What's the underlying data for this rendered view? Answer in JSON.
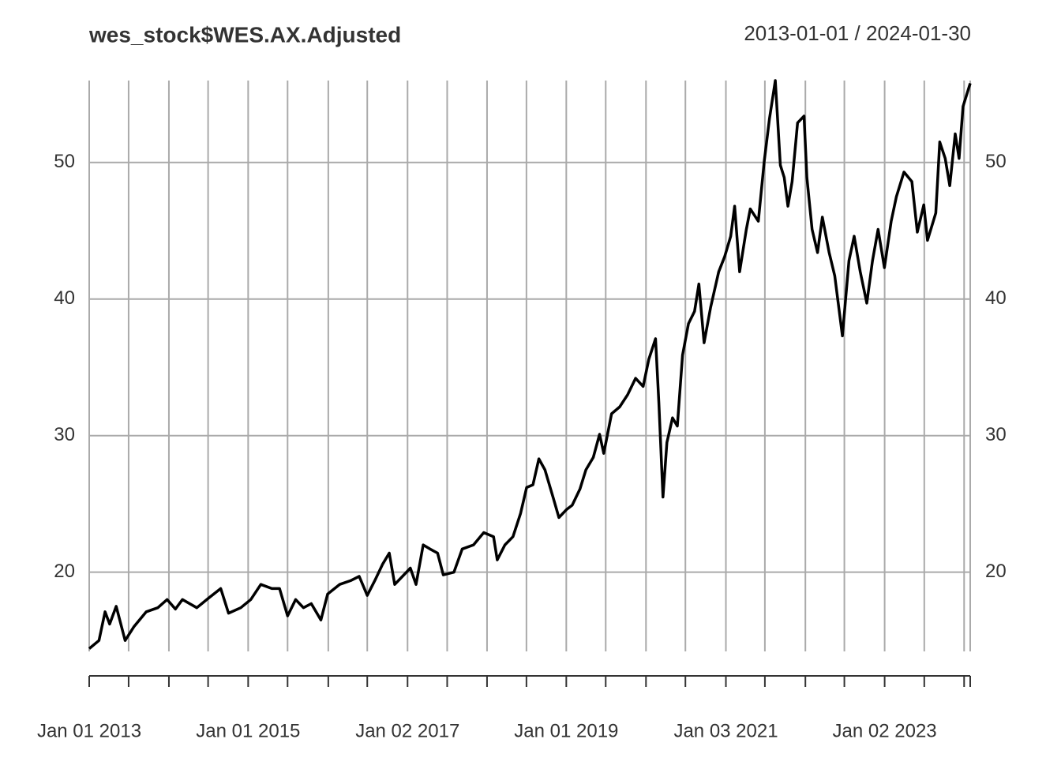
{
  "chart_data": {
    "type": "line",
    "title": "wes_stock$WES.AX.Adjusted",
    "date_range": "2013-01-01 / 2024-01-30",
    "x": [
      "2013-01-01",
      "2013-02-15",
      "2013-03-15",
      "2013-04-05",
      "2013-05-05",
      "2013-06-15",
      "2013-07-25",
      "2013-09-20",
      "2013-11-12",
      "2013-12-25",
      "2014-02-01",
      "2014-03-05",
      "2014-05-10",
      "2014-07-03",
      "2014-08-28",
      "2014-10-03",
      "2014-11-28",
      "2015-01-13",
      "2015-02-28",
      "2015-04-20",
      "2015-05-25",
      "2015-07-01",
      "2015-08-07",
      "2015-09-12",
      "2015-10-18",
      "2015-12-01",
      "2016-01-01",
      "2016-02-25",
      "2016-04-18",
      "2016-05-25",
      "2016-07-01",
      "2016-08-05",
      "2016-09-10",
      "2016-10-10",
      "2016-11-04",
      "2016-12-10",
      "2017-01-15",
      "2017-02-10",
      "2017-03-15",
      "2017-04-15",
      "2017-05-20",
      "2017-06-15",
      "2017-08-03",
      "2017-09-10",
      "2017-11-01",
      "2017-12-18",
      "2018-02-01",
      "2018-02-18",
      "2018-03-25",
      "2018-05-01",
      "2018-06-05",
      "2018-07-03",
      "2018-08-01",
      "2018-08-28",
      "2018-09-25",
      "2018-11-01",
      "2018-11-28",
      "2019-01-03",
      "2019-01-28",
      "2019-03-05",
      "2019-04-01",
      "2019-05-05",
      "2019-06-03",
      "2019-06-22",
      "2019-07-28",
      "2019-09-03",
      "2019-10-10",
      "2019-11-15",
      "2019-12-20",
      "2020-01-15",
      "2020-02-15",
      "2020-03-01",
      "2020-03-20",
      "2020-04-07",
      "2020-05-03",
      "2020-05-25",
      "2020-06-18",
      "2020-07-15",
      "2020-08-12",
      "2020-09-01",
      "2020-09-25",
      "2020-10-25",
      "2020-12-01",
      "2020-12-28",
      "2021-01-25",
      "2021-02-12",
      "2021-03-07",
      "2021-04-07",
      "2021-04-25",
      "2021-06-01",
      "2021-06-28",
      "2021-07-22",
      "2021-08-18",
      "2021-09-10",
      "2021-09-28",
      "2021-10-15",
      "2021-11-03",
      "2021-11-28",
      "2021-12-28",
      "2022-01-10",
      "2022-02-03",
      "2022-02-28",
      "2022-03-22",
      "2022-04-22",
      "2022-05-18",
      "2022-06-22",
      "2022-07-22",
      "2022-08-15",
      "2022-09-12",
      "2022-10-12",
      "2022-11-07",
      "2022-12-03",
      "2023-01-01",
      "2023-02-01",
      "2023-02-25",
      "2023-04-01",
      "2023-05-07",
      "2023-06-01",
      "2023-07-01",
      "2023-07-18",
      "2023-08-25",
      "2023-09-12",
      "2023-10-07",
      "2023-10-28",
      "2023-11-22",
      "2023-12-10",
      "2023-12-28",
      "2024-01-30"
    ],
    "series": [
      {
        "name": "WES.AX.Adjusted",
        "color": "#000000",
        "values": [
          14.4,
          15.0,
          17.1,
          16.2,
          17.5,
          15.0,
          16.0,
          17.1,
          17.4,
          18.0,
          17.3,
          18.0,
          17.4,
          18.1,
          18.8,
          17.0,
          17.4,
          18.0,
          19.1,
          18.8,
          18.8,
          16.8,
          18.0,
          17.4,
          17.7,
          16.5,
          18.4,
          19.1,
          19.4,
          19.7,
          18.3,
          19.4,
          20.6,
          21.4,
          19.1,
          19.7,
          20.3,
          19.1,
          22.0,
          21.7,
          21.4,
          19.8,
          20.0,
          21.7,
          22.0,
          22.9,
          22.6,
          20.9,
          22.0,
          22.6,
          24.3,
          26.2,
          26.4,
          28.3,
          27.5,
          25.5,
          24.0,
          24.6,
          24.9,
          26.1,
          27.5,
          28.4,
          30.1,
          28.7,
          31.6,
          32.1,
          33.0,
          34.2,
          33.6,
          35.6,
          37.1,
          32.4,
          25.5,
          29.5,
          31.3,
          30.7,
          35.9,
          38.2,
          39.1,
          41.1,
          36.8,
          39.4,
          42.0,
          43.1,
          44.6,
          46.8,
          42.0,
          45.1,
          46.6,
          45.7,
          50.1,
          53.2,
          56.0,
          49.8,
          48.9,
          46.8,
          48.6,
          52.9,
          53.4,
          48.9,
          45.1,
          43.4,
          46.0,
          43.4,
          41.7,
          37.3,
          42.8,
          44.6,
          42.0,
          39.7,
          42.8,
          45.1,
          42.3,
          45.7,
          47.5,
          49.3,
          48.6,
          44.9,
          46.9,
          44.3,
          46.3,
          51.5,
          50.3,
          48.3,
          52.1,
          50.3,
          54.1,
          55.8
        ]
      }
    ],
    "xlim": [
      "2013-01-01",
      "2024-01-30"
    ],
    "xticks": [
      {
        "value": "2013-01-01",
        "label": "Jan 01 2013"
      },
      "2013-07-01",
      "2014-01-02",
      "2014-07-01",
      {
        "value": "2015-01-01",
        "label": "Jan 01 2015"
      },
      "2015-07-01",
      "2016-01-04",
      "2016-07-01",
      {
        "value": "2017-01-02",
        "label": "Jan 02 2017"
      },
      "2017-07-03",
      "2018-01-02",
      "2018-07-02",
      {
        "value": "2019-01-01",
        "label": "Jan 01 2019"
      },
      "2019-07-01",
      "2020-01-02",
      "2020-07-01",
      {
        "value": "2021-01-03",
        "label": "Jan 03 2021"
      },
      "2021-07-01",
      "2022-01-03",
      "2022-07-01",
      {
        "value": "2023-01-02",
        "label": "Jan 02 2023"
      },
      "2023-07-03",
      "2024-01-02"
    ],
    "ylim": [
      14.2,
      56.0
    ],
    "yticks": [
      20,
      30,
      40,
      50
    ],
    "grid": true
  }
}
